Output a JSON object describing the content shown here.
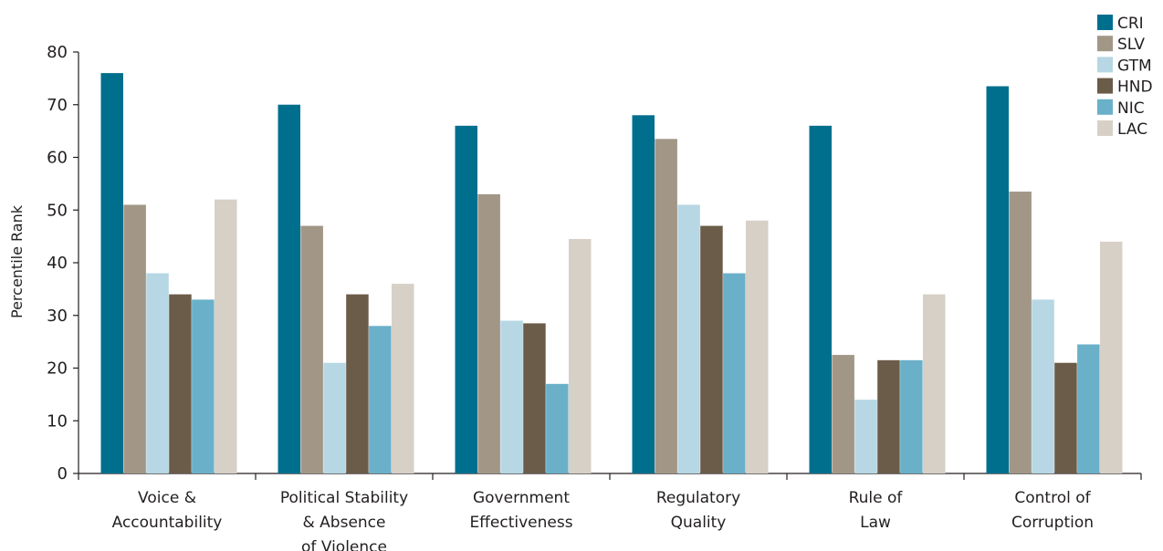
{
  "chart_data": {
    "type": "bar",
    "ylabel": "Percentile Rank",
    "ylim": [
      0,
      80
    ],
    "yticks": [
      0,
      10,
      20,
      30,
      40,
      50,
      60,
      70,
      80
    ],
    "categories": [
      [
        "Voice &",
        "Accountability"
      ],
      [
        "Political Stability",
        "& Absence",
        "of Violence"
      ],
      [
        "Government",
        "Effectiveness"
      ],
      [
        "Regulatory",
        "Quality"
      ],
      [
        "Rule of",
        "Law"
      ],
      [
        "Control of",
        "Corruption"
      ]
    ],
    "series": [
      {
        "name": "CRI",
        "color": "#006f8e",
        "values": [
          76,
          70,
          66,
          68,
          66,
          73.5
        ]
      },
      {
        "name": "SLV",
        "color": "#a29787",
        "values": [
          51,
          47,
          53,
          63.5,
          22.5,
          53.5
        ]
      },
      {
        "name": "GTM",
        "color": "#b6d7e3",
        "values": [
          38,
          21,
          29,
          51,
          14,
          33
        ]
      },
      {
        "name": "HND",
        "color": "#6b5c49",
        "values": [
          34,
          34,
          28.5,
          47,
          21.5,
          21
        ]
      },
      {
        "name": "NIC",
        "color": "#6ab0c9",
        "values": [
          33,
          28,
          17,
          38,
          21.5,
          24.5
        ]
      },
      {
        "name": "LAC",
        "color": "#d6d0c7",
        "values": [
          52,
          36,
          44.5,
          48,
          34,
          44
        ]
      }
    ],
    "legend_position": "top-right",
    "grid": false
  }
}
